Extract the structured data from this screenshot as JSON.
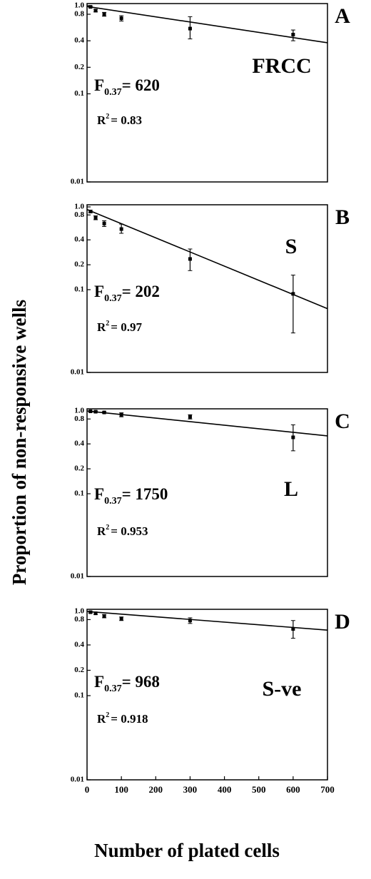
{
  "ylabel": "Proportion of non-responsive wells",
  "xlabel": "Number of plated cells",
  "chart_data": [
    {
      "type": "scatter",
      "panel_label": "A",
      "annotation": "FRCC",
      "f_text": "F",
      "f_sub": "0.37",
      "f_value": "= 620",
      "r_text": "R",
      "r_sup": "2",
      "r_value": "= 0.83",
      "xlim": [
        0,
        700
      ],
      "ylim": [
        0.01,
        1
      ],
      "yscale": "log",
      "yticks": [
        {
          "value": 1,
          "label": "1.0"
        },
        0.8,
        0.4,
        0.2,
        0.1,
        0.01
      ],
      "series": [
        {
          "color": "#000000",
          "x": [
            10,
            25,
            50,
            100,
            300,
            600
          ],
          "values": [
            0.97,
            0.88,
            0.8,
            0.72,
            0.55,
            0.47
          ],
          "y_low": [
            0.95,
            0.85,
            0.76,
            0.67,
            0.42,
            0.4
          ],
          "y_high": [
            0.99,
            0.91,
            0.84,
            0.77,
            0.75,
            0.53
          ]
        }
      ],
      "fit": {
        "color": "#000000",
        "x": [
          0,
          700
        ],
        "values": [
          0.98,
          0.38
        ]
      }
    },
    {
      "type": "scatter",
      "panel_label": "B",
      "annotation": "S",
      "f_text": "F",
      "f_sub": "0.37",
      "f_value": "= 202",
      "r_text": "R",
      "r_sup": "2",
      "r_value": "= 0.97",
      "xlim": [
        0,
        700
      ],
      "ylim": [
        0.01,
        1
      ],
      "yscale": "log",
      "yticks": [
        {
          "value": 1,
          "label": "1.0"
        },
        0.8,
        0.4,
        0.2,
        0.1,
        0.01
      ],
      "series": [
        {
          "color": "#000000",
          "x": [
            10,
            25,
            50,
            100,
            300,
            600
          ],
          "values": [
            0.88,
            0.74,
            0.63,
            0.54,
            0.235,
            0.089
          ],
          "y_low": [
            0.85,
            0.7,
            0.58,
            0.48,
            0.17,
            0.03
          ],
          "y_high": [
            0.91,
            0.78,
            0.68,
            0.62,
            0.31,
            0.15
          ]
        }
      ],
      "fit": {
        "color": "#000000",
        "x": [
          0,
          700
        ],
        "values": [
          0.93,
          0.059
        ]
      }
    },
    {
      "type": "scatter",
      "panel_label": "C",
      "annotation": "L",
      "f_text": "F",
      "f_sub": "0.37",
      "f_value": "= 1750",
      "r_text": "R",
      "r_sup": "2",
      "r_value": "= 0.953",
      "xlim": [
        0,
        700
      ],
      "ylim": [
        0.01,
        1
      ],
      "yscale": "log",
      "yticks": [
        {
          "value": 1,
          "label": "1.0"
        },
        0.8,
        0.4,
        0.2,
        0.1,
        0.01
      ],
      "series": [
        {
          "color": "#000000",
          "x": [
            10,
            25,
            50,
            100,
            300,
            600
          ],
          "values": [
            0.99,
            0.98,
            0.96,
            0.9,
            0.85,
            0.48
          ],
          "y_low": [
            0.97,
            0.96,
            0.94,
            0.85,
            0.8,
            0.33
          ],
          "y_high": [
            1,
            1,
            0.98,
            0.95,
            0.9,
            0.68
          ]
        }
      ],
      "fit": {
        "color": "#000000",
        "x": [
          0,
          700
        ],
        "values": [
          1,
          0.5
        ]
      }
    },
    {
      "type": "scatter",
      "panel_label": "D",
      "annotation": "S-ve",
      "f_text": "F",
      "f_sub": "0.37",
      "f_value": "= 968",
      "r_text": "R",
      "r_sup": "2",
      "r_value": "= 0.918",
      "xlim": [
        0,
        700
      ],
      "ylim": [
        0.01,
        1
      ],
      "yscale": "log",
      "yticks": [
        {
          "value": 1,
          "label": "1.0"
        },
        0.8,
        0.4,
        0.2,
        0.1,
        0.01
      ],
      "xticks": [
        0,
        100,
        200,
        300,
        400,
        500,
        600,
        700
      ],
      "series": [
        {
          "color": "#000000",
          "x": [
            10,
            25,
            50,
            100,
            300,
            600
          ],
          "values": [
            0.98,
            0.95,
            0.88,
            0.82,
            0.78,
            0.62
          ],
          "y_low": [
            0.96,
            0.92,
            0.84,
            0.78,
            0.72,
            0.48
          ],
          "y_high": [
            1,
            0.98,
            0.92,
            0.86,
            0.84,
            0.78
          ]
        }
      ],
      "fit": {
        "color": "#000000",
        "x": [
          0,
          700
        ],
        "values": [
          1,
          0.6
        ]
      }
    }
  ]
}
